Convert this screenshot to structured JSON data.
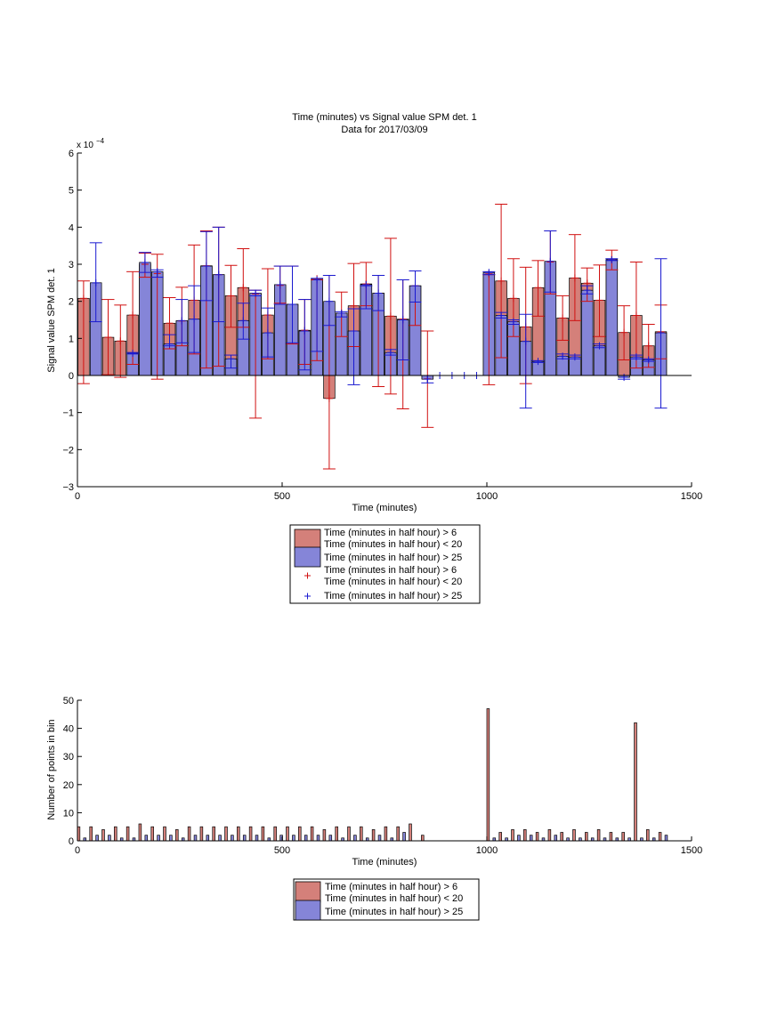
{
  "colors": {
    "series_a": "#d4807a",
    "series_b": "#8585d8",
    "marker_a": "#d01010",
    "marker_b": "#1a1ad0",
    "axis": "#000000"
  },
  "top_chart": {
    "title_line1": "Time (minutes) vs Signal value SPM det. 1",
    "title_line2": "Data for 2017/03/09",
    "exponent_base": "x 10",
    "exponent_power": "−4",
    "xlabel": "Time (minutes)",
    "ylabel": "Signal value SPM det. 1",
    "xticks": [
      "0",
      "500",
      "1000",
      "1500"
    ],
    "yticks": [
      "−3",
      "−2",
      "−1",
      "0",
      "1",
      "2",
      "3",
      "4",
      "5",
      "6"
    ]
  },
  "top_legend": {
    "items": [
      {
        "lines": [
          "Time (minutes in half hour) > 6",
          "Time (minutes in half hour) < 20"
        ],
        "kind": "bar-a"
      },
      {
        "lines": [
          "Time (minutes in half hour) > 25"
        ],
        "kind": "bar-b"
      },
      {
        "lines": [
          "Time (minutes in half hour) > 6",
          "Time (minutes in half hour) < 20"
        ],
        "kind": "plus-a"
      },
      {
        "lines": [
          "Time (minutes in half hour) > 25"
        ],
        "kind": "plus-b"
      }
    ]
  },
  "bottom_chart": {
    "xlabel": "Time (minutes)",
    "ylabel": "Number of points in bin",
    "xticks": [
      "0",
      "500",
      "1000",
      "1500"
    ],
    "yticks": [
      "0",
      "10",
      "20",
      "30",
      "40",
      "50"
    ]
  },
  "bottom_legend": {
    "items": [
      {
        "lines": [
          "Time (minutes in half hour) > 6",
          "Time (minutes in half hour) < 20"
        ],
        "kind": "bar-a"
      },
      {
        "lines": [
          "Time (minutes in half hour) > 25"
        ],
        "kind": "bar-b"
      }
    ]
  },
  "chart_data": [
    {
      "type": "bar",
      "title": "Time (minutes) vs Signal value SPM det. 1 / Data for 2017/03/09",
      "xlabel": "Time (minutes)",
      "ylabel": "Signal value SPM det. 1",
      "y_scale_factor": "1e-4",
      "xlim": [
        0,
        1500
      ],
      "ylim": [
        -3,
        6
      ],
      "series": [
        {
          "name": "Time (minutes in half hour) > 6 / Time (minutes in half hour) < 20",
          "x": [
            15,
            75,
            105,
            135,
            165,
            195,
            225,
            255,
            285,
            315,
            345,
            375,
            405,
            435,
            465,
            495,
            525,
            555,
            585,
            615,
            645,
            675,
            705,
            735,
            765,
            795,
            825,
            855,
            1005,
            1035,
            1065,
            1095,
            1125,
            1155,
            1185,
            1215,
            1245,
            1275,
            1305,
            1335,
            1365,
            1395,
            1425
          ],
          "values": [
            2.08,
            1.03,
            0.93,
            1.63,
            3.0,
            2.75,
            1.41,
            1.47,
            2.03,
            2.96,
            2.72,
            2.15,
            2.37,
            2.2,
            1.63,
            2.43,
            1.92,
            1.22,
            2.61,
            -0.62,
            1.68,
            1.88,
            2.47,
            2.22,
            1.6,
            1.52,
            2.42,
            -0.09,
            2.74,
            2.55,
            2.08,
            1.31,
            2.37,
            3.06,
            1.55,
            2.63,
            2.49,
            2.03,
            3.13,
            1.16,
            1.62,
            0.8,
            1.18
          ],
          "err_upper": [
            2.55,
            2.05,
            1.9,
            2.8,
            3.3,
            3.27,
            2.1,
            2.38,
            3.52,
            3.9,
            4.0,
            2.97,
            3.42,
            2.3,
            2.88,
            2.95,
            2.95,
            2.05,
            2.58,
            2.7,
            2.25,
            3.02,
            3.05,
            2.7,
            3.7,
            2.58,
            2.82,
            1.2,
            2.72,
            4.62,
            3.15,
            2.92,
            3.1,
            3.9,
            2.15,
            3.8,
            2.9,
            2.98,
            3.38,
            1.88,
            3.06,
            1.38,
            1.9
          ],
          "err_lower": [
            -0.22,
            0.02,
            -0.05,
            0.3,
            2.65,
            -0.1,
            0.72,
            0.8,
            0.58,
            0.2,
            0.25,
            1.3,
            1.3,
            -1.15,
            0.45,
            1.95,
            0.85,
            0.3,
            0.4,
            -2.52,
            1.05,
            0.78,
            1.88,
            -0.3,
            -0.5,
            -0.9,
            1.35,
            -1.4,
            -0.25,
            0.48,
            1.05,
            -0.22,
            1.6,
            2.2,
            0.95,
            1.48,
            2.0,
            1.05,
            2.85,
            0.42,
            0.2,
            0.22,
            0.45
          ]
        },
        {
          "name": "Time (minutes in half hour) > 25",
          "x": [
            45,
            135,
            165,
            195,
            225,
            255,
            285,
            315,
            345,
            375,
            405,
            435,
            465,
            495,
            525,
            555,
            585,
            615,
            645,
            675,
            705,
            735,
            765,
            795,
            825,
            855,
            885,
            915,
            945,
            975,
            1005,
            1035,
            1065,
            1095,
            1125,
            1155,
            1185,
            1215,
            1245,
            1275,
            1305,
            1335,
            1365,
            1395,
            1425
          ],
          "values": [
            2.5,
            0.6,
            3.05,
            2.8,
            0.85,
            1.48,
            1.52,
            2.95,
            2.72,
            0.45,
            1.48,
            2.22,
            1.15,
            2.45,
            1.92,
            1.2,
            2.58,
            2.0,
            1.68,
            1.2,
            2.45,
            2.22,
            0.62,
            1.5,
            2.42,
            -0.1,
            0,
            0,
            0,
            0,
            2.78,
            1.62,
            1.45,
            0.92,
            0.38,
            3.08,
            0.52,
            0.5,
            2.3,
            0.8,
            3.12,
            -0.05,
            0.5,
            0.42,
            1.15
          ],
          "err_upper": [
            3.58,
            0.62,
            3.32,
            2.85,
            1.1,
            2.05,
            2.42,
            3.88,
            4.0,
            0.55,
            1.95,
            2.3,
            1.82,
            2.95,
            2.95,
            2.05,
            2.62,
            2.7,
            1.72,
            1.8,
            2.42,
            2.7,
            0.7,
            2.58,
            2.82,
            0.0,
            0,
            0,
            0,
            0,
            2.8,
            1.7,
            1.5,
            1.65,
            0.4,
            3.9,
            0.58,
            0.55,
            2.42,
            0.85,
            3.15,
            0.0,
            0.55,
            0.45,
            3.15
          ],
          "err_lower": [
            1.45,
            0.58,
            2.78,
            2.65,
            0.8,
            0.88,
            0.62,
            2.02,
            1.45,
            0.2,
            0.98,
            2.15,
            0.5,
            1.92,
            0.88,
            0.15,
            0.65,
            1.35,
            1.58,
            -0.25,
            1.8,
            1.75,
            0.55,
            0.42,
            1.98,
            -0.2,
            0,
            0,
            0,
            0,
            2.72,
            1.55,
            1.38,
            -0.88,
            0.35,
            2.25,
            0.45,
            0.45,
            2.2,
            0.75,
            3.1,
            -0.1,
            0.45,
            0.38,
            -0.88
          ]
        }
      ]
    },
    {
      "type": "bar",
      "xlabel": "Time (minutes)",
      "ylabel": "Number of points in bin",
      "xlim": [
        0,
        1500
      ],
      "ylim": [
        0,
        50
      ],
      "series": [
        {
          "name": "Time (minutes in half hour) > 6 / Time (minutes in half hour) < 20",
          "x": [
            0,
            30,
            60,
            90,
            120,
            150,
            180,
            210,
            240,
            270,
            300,
            330,
            360,
            390,
            420,
            450,
            480,
            510,
            540,
            570,
            600,
            630,
            660,
            690,
            720,
            750,
            780,
            810,
            840,
            1000,
            1030,
            1060,
            1090,
            1120,
            1150,
            1180,
            1210,
            1240,
            1270,
            1300,
            1330,
            1360,
            1390,
            1420
          ],
          "values": [
            5,
            5,
            4,
            5,
            5,
            6,
            5,
            5,
            4,
            5,
            5,
            5,
            5,
            5,
            5,
            5,
            5,
            5,
            5,
            5,
            4,
            5,
            5,
            5,
            4,
            5,
            5,
            6,
            2,
            47,
            3,
            4,
            4,
            3,
            4,
            3,
            4,
            3,
            4,
            3,
            3,
            42,
            4,
            3
          ]
        },
        {
          "name": "Time (minutes in half hour) > 25",
          "x": [
            15,
            45,
            75,
            105,
            135,
            165,
            195,
            225,
            255,
            285,
            315,
            345,
            375,
            405,
            435,
            465,
            495,
            525,
            555,
            585,
            615,
            645,
            675,
            705,
            735,
            765,
            795,
            1015,
            1045,
            1075,
            1105,
            1135,
            1165,
            1195,
            1225,
            1255,
            1285,
            1315,
            1345,
            1375,
            1405,
            1435
          ],
          "values": [
            1,
            2,
            2,
            1,
            1,
            2,
            2,
            2,
            1,
            2,
            2,
            2,
            2,
            2,
            2,
            1,
            2,
            2,
            2,
            2,
            2,
            1,
            2,
            1,
            2,
            1,
            3,
            1,
            1,
            2,
            2,
            1,
            2,
            1,
            1,
            1,
            1,
            1,
            1,
            1,
            1,
            2
          ]
        }
      ]
    }
  ]
}
